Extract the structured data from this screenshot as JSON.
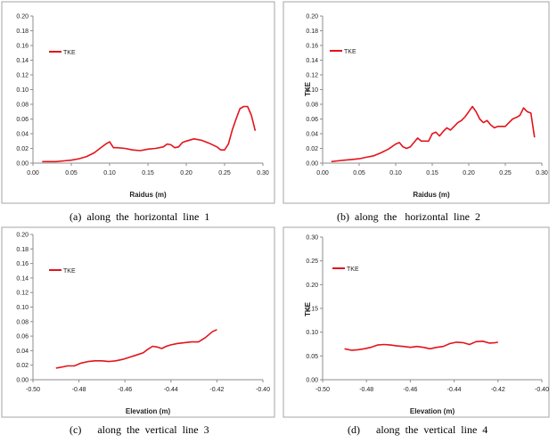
{
  "chart_data": [
    {
      "type": "line",
      "caption": "(a)  along  the  horizontal  line  1",
      "xlabel": "Raidus (m)",
      "ylabel": "",
      "xlim": [
        0,
        0.3
      ],
      "ylim": [
        0,
        0.2
      ],
      "xticks": [
        "0.00",
        "0.05",
        "0.10",
        "0.15",
        "0.20",
        "0.25",
        "0.30"
      ],
      "yticks": [
        "0.00",
        "0.02",
        "0.04",
        "0.06",
        "0.08",
        "0.10",
        "0.12",
        "0.14",
        "0.16",
        "0.18",
        "0.20"
      ],
      "grid": false,
      "legend": "top-left",
      "series": [
        {
          "name": "TKE",
          "color": "#e2141b",
          "x": [
            0.012,
            0.02,
            0.03,
            0.04,
            0.05,
            0.06,
            0.07,
            0.08,
            0.09,
            0.095,
            0.1,
            0.105,
            0.11,
            0.12,
            0.13,
            0.14,
            0.15,
            0.16,
            0.17,
            0.175,
            0.18,
            0.185,
            0.19,
            0.195,
            0.2,
            0.21,
            0.22,
            0.23,
            0.24,
            0.245,
            0.25,
            0.255,
            0.26,
            0.265,
            0.27,
            0.275,
            0.28,
            0.285,
            0.29
          ],
          "y": [
            0.002,
            0.002,
            0.002,
            0.003,
            0.004,
            0.006,
            0.009,
            0.014,
            0.022,
            0.026,
            0.029,
            0.021,
            0.021,
            0.02,
            0.018,
            0.017,
            0.019,
            0.02,
            0.022,
            0.026,
            0.025,
            0.021,
            0.022,
            0.028,
            0.03,
            0.033,
            0.031,
            0.027,
            0.022,
            0.018,
            0.018,
            0.026,
            0.045,
            0.06,
            0.074,
            0.077,
            0.077,
            0.065,
            0.044
          ]
        }
      ]
    },
    {
      "type": "line",
      "caption": "(b)  along  the   horizontal  line  2",
      "xlabel": "Raidus (m)",
      "ylabel": "TKE",
      "xlim": [
        0,
        0.3
      ],
      "ylim": [
        0,
        0.2
      ],
      "xticks": [
        "0.00",
        "0.05",
        "0.10",
        "0.15",
        "0.20",
        "0.25",
        "0.30"
      ],
      "yticks": [
        "0.00",
        "0.02",
        "0.04",
        "0.06",
        "0.08",
        "0.10",
        "0.12",
        "0.14",
        "0.16",
        "0.18",
        "0.20"
      ],
      "grid": false,
      "legend": "top-left",
      "series": [
        {
          "name": "TKE",
          "color": "#e2141b",
          "x": [
            0.012,
            0.02,
            0.03,
            0.04,
            0.05,
            0.06,
            0.07,
            0.08,
            0.09,
            0.1,
            0.105,
            0.11,
            0.115,
            0.12,
            0.13,
            0.135,
            0.14,
            0.145,
            0.15,
            0.155,
            0.16,
            0.165,
            0.17,
            0.175,
            0.18,
            0.185,
            0.19,
            0.195,
            0.2,
            0.205,
            0.21,
            0.215,
            0.22,
            0.225,
            0.23,
            0.235,
            0.24,
            0.245,
            0.25,
            0.255,
            0.26,
            0.265,
            0.27,
            0.275,
            0.28,
            0.285,
            0.29
          ],
          "y": [
            0.002,
            0.003,
            0.004,
            0.005,
            0.006,
            0.008,
            0.01,
            0.014,
            0.019,
            0.026,
            0.028,
            0.022,
            0.02,
            0.022,
            0.034,
            0.03,
            0.03,
            0.03,
            0.04,
            0.042,
            0.037,
            0.043,
            0.048,
            0.045,
            0.05,
            0.055,
            0.058,
            0.063,
            0.07,
            0.077,
            0.07,
            0.06,
            0.055,
            0.058,
            0.052,
            0.048,
            0.05,
            0.05,
            0.05,
            0.055,
            0.06,
            0.062,
            0.065,
            0.075,
            0.07,
            0.068,
            0.035
          ]
        }
      ]
    },
    {
      "type": "line",
      "caption": "(c)      along  the  vertical  line  3",
      "xlabel": "Elevation (m)",
      "ylabel": "",
      "xlim": [
        -0.5,
        -0.4
      ],
      "ylim": [
        0,
        0.2
      ],
      "xticks": [
        "-0.50",
        "-0.48",
        "-0.46",
        "-0.44",
        "-0.42",
        "-0.40"
      ],
      "yticks": [
        "0.00",
        "0.02",
        "0.04",
        "0.06",
        "0.08",
        "0.10",
        "0.12",
        "0.14",
        "0.16",
        "0.18",
        "0.20"
      ],
      "grid": false,
      "legend": "top-left",
      "series": [
        {
          "name": "TKE",
          "color": "#e2141b",
          "x": [
            -0.49,
            -0.488,
            -0.485,
            -0.482,
            -0.479,
            -0.476,
            -0.473,
            -0.47,
            -0.467,
            -0.464,
            -0.461,
            -0.458,
            -0.455,
            -0.452,
            -0.45,
            -0.448,
            -0.446,
            -0.444,
            -0.442,
            -0.44,
            -0.437,
            -0.434,
            -0.431,
            -0.428,
            -0.425,
            -0.422,
            -0.42
          ],
          "y": [
            0.016,
            0.017,
            0.019,
            0.019,
            0.023,
            0.025,
            0.026,
            0.026,
            0.025,
            0.026,
            0.028,
            0.031,
            0.034,
            0.037,
            0.042,
            0.046,
            0.045,
            0.043,
            0.046,
            0.048,
            0.05,
            0.051,
            0.052,
            0.052,
            0.058,
            0.066,
            0.069
          ]
        }
      ]
    },
    {
      "type": "line",
      "caption": "(d)      along  the  vertical  line  4",
      "xlabel": "Elevation (m)",
      "ylabel": "TKE",
      "xlim": [
        -0.5,
        -0.4
      ],
      "ylim": [
        0,
        0.3
      ],
      "xticks": [
        "-0.50",
        "-0.48",
        "-0.46",
        "-0.44",
        "-0.42",
        "-0.40"
      ],
      "yticks": [
        "0.00",
        "0.05",
        "0.10",
        "0.15",
        "0.20",
        "0.25",
        "0.30"
      ],
      "grid": false,
      "legend": "top-left",
      "series": [
        {
          "name": "TKE",
          "color": "#e2141b",
          "x": [
            -0.49,
            -0.487,
            -0.484,
            -0.481,
            -0.478,
            -0.475,
            -0.472,
            -0.469,
            -0.466,
            -0.463,
            -0.46,
            -0.457,
            -0.454,
            -0.451,
            -0.448,
            -0.445,
            -0.442,
            -0.439,
            -0.436,
            -0.433,
            -0.43,
            -0.427,
            -0.424,
            -0.421,
            -0.42
          ],
          "y": [
            0.065,
            0.062,
            0.063,
            0.065,
            0.068,
            0.073,
            0.074,
            0.073,
            0.071,
            0.07,
            0.068,
            0.07,
            0.068,
            0.065,
            0.068,
            0.07,
            0.076,
            0.079,
            0.078,
            0.074,
            0.08,
            0.081,
            0.077,
            0.078,
            0.079
          ]
        }
      ]
    }
  ]
}
